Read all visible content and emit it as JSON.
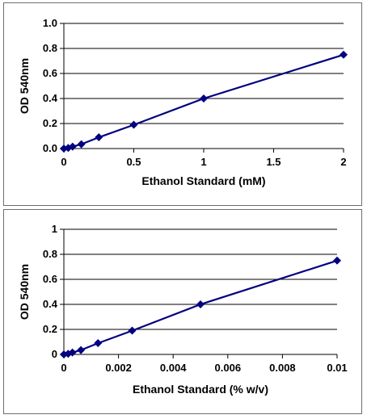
{
  "chart_data": [
    {
      "type": "line",
      "xlabel": "Ethanol Standard (mM)",
      "ylabel": "OD 540nm",
      "xlim": [
        0,
        2
      ],
      "ylim": [
        0,
        1.0
      ],
      "x_ticks": [
        "0",
        "0.5",
        "1",
        "1.5",
        "2"
      ],
      "y_ticks": [
        "0.0",
        "0.2",
        "0.4",
        "0.6",
        "0.8",
        "1.0"
      ],
      "grid": "horizontal",
      "marker": "diamond",
      "color": "#000080",
      "series": [
        {
          "x": [
            0,
            0.03125,
            0.0625,
            0.125,
            0.25,
            0.5,
            1,
            2
          ],
          "y": [
            0.0,
            0.005,
            0.015,
            0.035,
            0.09,
            0.19,
            0.4,
            0.75
          ]
        }
      ]
    },
    {
      "type": "line",
      "xlabel": "Ethanol Standard (% w/v)",
      "ylabel": "OD 540nm",
      "xlim": [
        0,
        0.01
      ],
      "ylim": [
        0,
        1
      ],
      "x_ticks": [
        "0",
        "0.002",
        "0.004",
        "0.006",
        "0.008",
        "0.01"
      ],
      "y_ticks": [
        "0",
        "0.2",
        "0.4",
        "0.6",
        "0.8",
        "1"
      ],
      "grid": "horizontal",
      "marker": "diamond",
      "color": "#000080",
      "series": [
        {
          "x": [
            0,
            0.00015625,
            0.0003125,
            0.000625,
            0.00125,
            0.0025,
            0.005,
            0.01
          ],
          "y": [
            0.0,
            0.005,
            0.015,
            0.035,
            0.09,
            0.19,
            0.4,
            0.75
          ]
        }
      ]
    }
  ]
}
